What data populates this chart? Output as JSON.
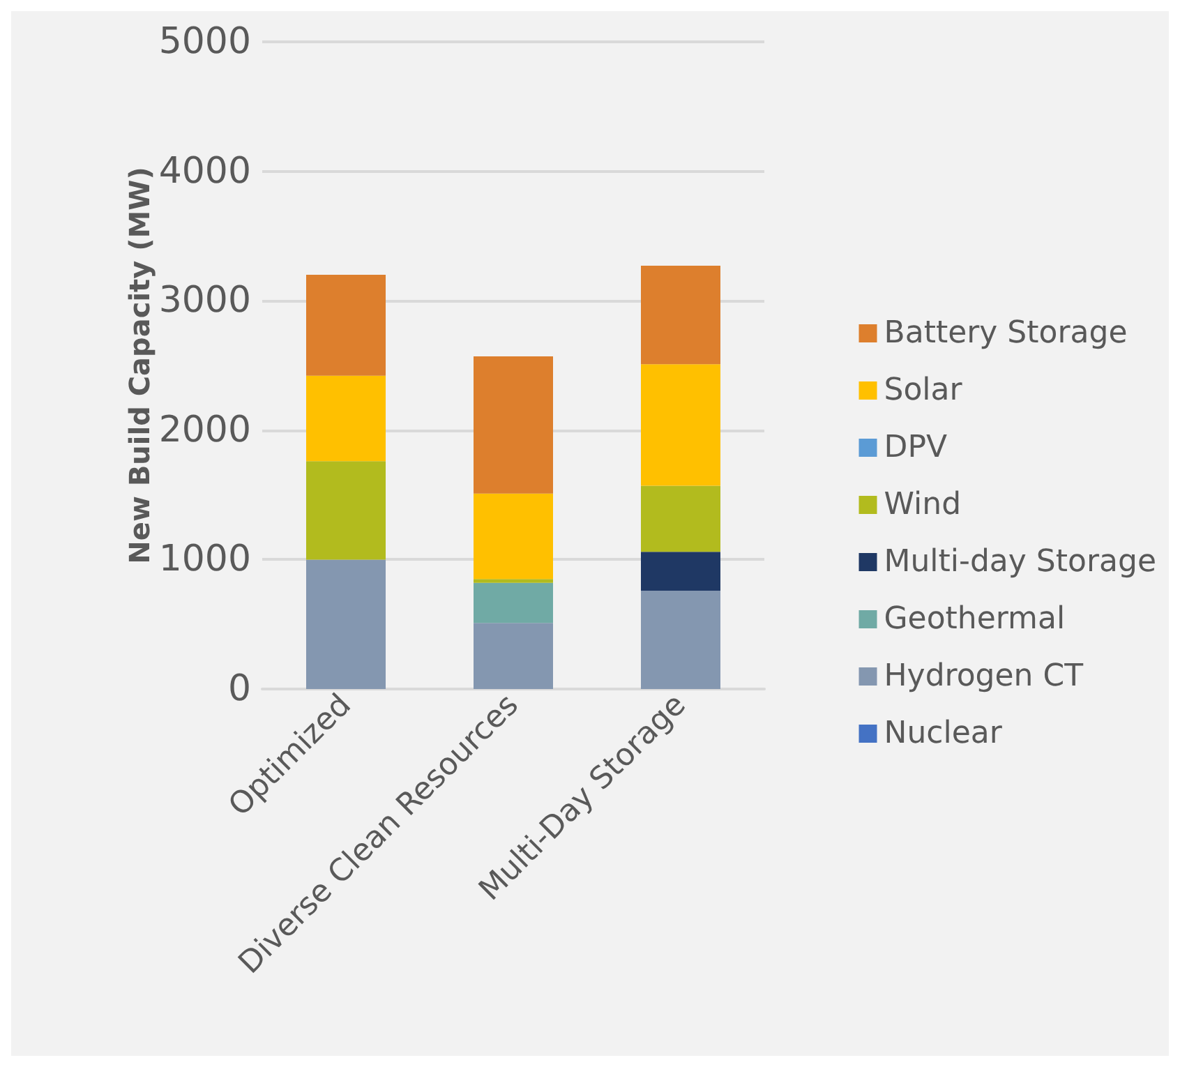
{
  "chart_data": {
    "type": "bar",
    "stacked": true,
    "ylabel": "New Build Capacity (MW)",
    "categories": [
      "Optimized",
      "Diverse Clean Resources",
      "Multi-Day Storage"
    ],
    "series": [
      {
        "name": "Nuclear",
        "color": "#4472c4",
        "values": [
          0,
          0,
          0
        ]
      },
      {
        "name": "Hydrogen CT",
        "color": "#8497b0",
        "values": [
          1000,
          510,
          760
        ]
      },
      {
        "name": "Geothermal",
        "color": "#70aaa5",
        "values": [
          0,
          310,
          0
        ]
      },
      {
        "name": "Multi-day Storage",
        "color": "#1f3864",
        "values": [
          0,
          0,
          300
        ]
      },
      {
        "name": "Wind",
        "color": "#b2bb1e",
        "values": [
          760,
          30,
          510
        ]
      },
      {
        "name": "DPV",
        "color": "#5b9bd5",
        "values": [
          0,
          0,
          0
        ]
      },
      {
        "name": "Solar",
        "color": "#ffc000",
        "values": [
          660,
          660,
          940
        ]
      },
      {
        "name": "Battery Storage",
        "color": "#dd7f2d",
        "values": [
          780,
          1060,
          760
        ]
      }
    ],
    "ylim": [
      0,
      5000
    ],
    "yticks": [
      0,
      1000,
      2000,
      3000,
      4000,
      5000
    ],
    "grid": "y",
    "legend": "right"
  }
}
